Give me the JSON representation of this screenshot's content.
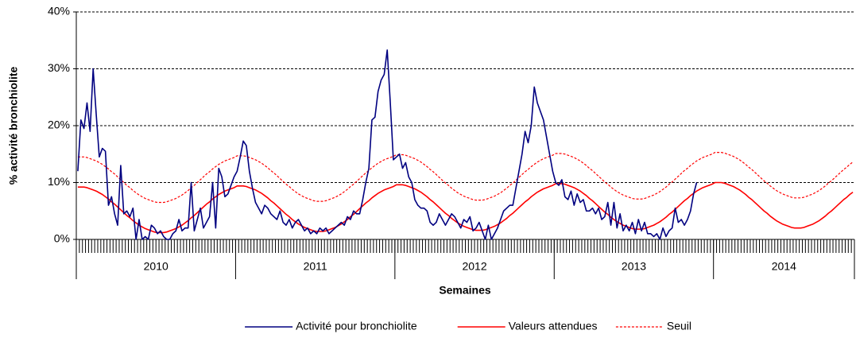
{
  "chart_data": {
    "type": "line",
    "ylabel": "% activité bronchiolite",
    "xlabel": "Semaines",
    "ylim": [
      0,
      40
    ],
    "yticks": [
      {
        "value": 0,
        "label": "0%"
      },
      {
        "value": 10,
        "label": "10%"
      },
      {
        "value": 20,
        "label": "20%"
      },
      {
        "value": 30,
        "label": "30%"
      },
      {
        "value": 40,
        "label": "40%"
      }
    ],
    "grid": true,
    "legend": "bottom",
    "categories": [
      "2010",
      "2010",
      "2010",
      "2010",
      "2010",
      "2010",
      "2010",
      "2010",
      "2010",
      "2010",
      "2010",
      "2010",
      "2010",
      "2010",
      "2010",
      "2010",
      "2010",
      "2010",
      "2010",
      "2010",
      "2010",
      "2010",
      "2010",
      "2010",
      "2010",
      "2010",
      "2010",
      "2010",
      "2010",
      "2010",
      "2010",
      "2010",
      "2010",
      "2010",
      "2010",
      "2010",
      "2010",
      "2010",
      "2010",
      "2010",
      "2010",
      "2010",
      "2010",
      "2010",
      "2010",
      "2010",
      "2010",
      "2010",
      "2010",
      "2010",
      "2010",
      "2010",
      "2011",
      "2011",
      "2011",
      "2011",
      "2011",
      "2011",
      "2011",
      "2011",
      "2011",
      "2011",
      "2011",
      "2011",
      "2011",
      "2011",
      "2011",
      "2011",
      "2011",
      "2011",
      "2011",
      "2011",
      "2011",
      "2011",
      "2011",
      "2011",
      "2011",
      "2011",
      "2011",
      "2011",
      "2011",
      "2011",
      "2011",
      "2011",
      "2011",
      "2011",
      "2011",
      "2011",
      "2011",
      "2011",
      "2011",
      "2011",
      "2011",
      "2011",
      "2011",
      "2011",
      "2011",
      "2011",
      "2011",
      "2011",
      "2011",
      "2011",
      "2011",
      "2011",
      "2012",
      "2012",
      "2012",
      "2012",
      "2012",
      "2012",
      "2012",
      "2012",
      "2012",
      "2012",
      "2012",
      "2012",
      "2012",
      "2012",
      "2012",
      "2012",
      "2012",
      "2012",
      "2012",
      "2012",
      "2012",
      "2012",
      "2012",
      "2012",
      "2012",
      "2012",
      "2012",
      "2012",
      "2012",
      "2012",
      "2012",
      "2012",
      "2012",
      "2012",
      "2012",
      "2012",
      "2012",
      "2012",
      "2012",
      "2012",
      "2012",
      "2012",
      "2012",
      "2012",
      "2012",
      "2012",
      "2012",
      "2012",
      "2012",
      "2012",
      "2012",
      "2012",
      "2013",
      "2013",
      "2013",
      "2013",
      "2013",
      "2013",
      "2013",
      "2013",
      "2013",
      "2013",
      "2013",
      "2013",
      "2013",
      "2013",
      "2013",
      "2013",
      "2013",
      "2013",
      "2013",
      "2013",
      "2013",
      "2013",
      "2013",
      "2013",
      "2013",
      "2013",
      "2013",
      "2013",
      "2013",
      "2013",
      "2013",
      "2013",
      "2013",
      "2013",
      "2013",
      "2013",
      "2013",
      "2013",
      "2013",
      "2013",
      "2013",
      "2013",
      "2013",
      "2013",
      "2013",
      "2013",
      "2013",
      "2013",
      "2013",
      "2013",
      "2013",
      "2013",
      "2014",
      "2014",
      "2014",
      "2014",
      "2014",
      "2014",
      "2014",
      "2014",
      "2014",
      "2014",
      "2014",
      "2014",
      "2014",
      "2014",
      "2014",
      "2014",
      "2014",
      "2014",
      "2014",
      "2014",
      "2014",
      "2014",
      "2014",
      "2014",
      "2014",
      "2014",
      "2014",
      "2014",
      "2014",
      "2014",
      "2014",
      "2014",
      "2014",
      "2014",
      "2014",
      "2014",
      "2014",
      "2014",
      "2014",
      "2014",
      "2014",
      "2014",
      "2014",
      "2014",
      "2014",
      "2014"
    ],
    "series": [
      {
        "name": "Activité pour bronchiolite",
        "color": "#000080",
        "style": "solid",
        "values": [
          12.0,
          21.0,
          19.5,
          24.0,
          19.0,
          30.0,
          22.0,
          14.5,
          16.0,
          15.5,
          6.0,
          7.5,
          4.5,
          2.5,
          13.0,
          4.5,
          5.0,
          4.0,
          5.5,
          0.0,
          3.5,
          0.0,
          0.5,
          0.0,
          2.5,
          2.0,
          1.0,
          1.5,
          0.5,
          0.0,
          0.0,
          1.0,
          1.5,
          3.5,
          1.5,
          2.0,
          2.0,
          10.0,
          1.5,
          3.5,
          5.5,
          2.0,
          3.0,
          4.0,
          10.0,
          2.0,
          12.5,
          11.0,
          7.5,
          8.0,
          9.5,
          11.0,
          12.0,
          14.5,
          17.3,
          16.5,
          12.0,
          9.0,
          6.5,
          5.5,
          4.5,
          6.0,
          5.5,
          4.5,
          4.0,
          3.5,
          5.0,
          3.0,
          2.5,
          3.5,
          2.0,
          3.0,
          3.5,
          2.5,
          1.5,
          2.0,
          1.0,
          1.5,
          1.0,
          2.0,
          1.5,
          2.0,
          1.0,
          1.5,
          2.0,
          2.5,
          3.0,
          2.5,
          4.0,
          3.5,
          5.0,
          4.5,
          4.5,
          7.0,
          10.0,
          12.5,
          21.0,
          21.5,
          26.0,
          28.0,
          29.0,
          33.3,
          24.0,
          14.0,
          14.5,
          15.0,
          12.5,
          13.5,
          11.0,
          10.0,
          7.0,
          6.0,
          5.5,
          5.5,
          5.0,
          3.0,
          2.5,
          3.0,
          4.5,
          3.5,
          2.5,
          3.5,
          4.5,
          4.0,
          3.0,
          2.0,
          3.5,
          3.0,
          4.0,
          1.5,
          2.0,
          3.0,
          1.5,
          0.0,
          2.5,
          0.0,
          1.0,
          2.0,
          3.5,
          5.0,
          5.5,
          6.0,
          6.0,
          9.0,
          12.0,
          15.0,
          19.0,
          17.0,
          20.0,
          26.8,
          24.0,
          22.5,
          21.0,
          18.0,
          15.0,
          12.0,
          10.0,
          9.5,
          10.5,
          7.5,
          7.0,
          8.5,
          6.0,
          8.0,
          6.5,
          7.0,
          5.0,
          5.0,
          5.5,
          4.5,
          5.5,
          3.5,
          4.0,
          6.5,
          2.5,
          6.5,
          2.0,
          4.5,
          1.5,
          2.5,
          1.5,
          3.0,
          1.0,
          3.5,
          1.5,
          3.0,
          1.0,
          1.0,
          0.5,
          1.0,
          0.0,
          2.0,
          0.5,
          1.5,
          2.0,
          5.5,
          3.0,
          3.5,
          2.5,
          3.5,
          5.0,
          8.0,
          10.0,
          null,
          null,
          null,
          null,
          null,
          null,
          null,
          null,
          null,
          null,
          null,
          null,
          null,
          null,
          null,
          null,
          null,
          null,
          null,
          null,
          null,
          null,
          null,
          null,
          null,
          null,
          null,
          null,
          null,
          null,
          null,
          null,
          null,
          null,
          null,
          null,
          null,
          null,
          null,
          null,
          null,
          null,
          null,
          null,
          null,
          null,
          null,
          null,
          null,
          null,
          null
        ]
      },
      {
        "name": "Valeurs attendues",
        "color": "#ff0000",
        "style": "solid",
        "values": [
          9.2,
          9.2,
          9.2,
          9.1,
          8.9,
          8.7,
          8.5,
          8.2,
          7.9,
          7.5,
          7.1,
          6.6,
          6.2,
          5.7,
          5.2,
          4.7,
          4.2,
          3.8,
          3.3,
          2.9,
          2.5,
          2.2,
          1.9,
          1.7,
          1.5,
          1.3,
          1.2,
          1.2,
          1.2,
          1.3,
          1.5,
          1.7,
          1.9,
          2.2,
          2.5,
          2.9,
          3.3,
          3.8,
          4.2,
          4.7,
          5.2,
          5.7,
          6.2,
          6.6,
          7.1,
          7.5,
          7.9,
          8.2,
          8.5,
          8.7,
          8.9,
          9.1,
          9.4,
          9.4,
          9.4,
          9.3,
          9.1,
          8.9,
          8.7,
          8.4,
          8.1,
          7.7,
          7.3,
          6.8,
          6.4,
          5.9,
          5.4,
          4.9,
          4.4,
          4.0,
          3.5,
          3.1,
          2.7,
          2.4,
          2.1,
          1.9,
          1.7,
          1.5,
          1.4,
          1.4,
          1.4,
          1.5,
          1.7,
          1.9,
          2.1,
          2.4,
          2.7,
          3.1,
          3.5,
          4.0,
          4.4,
          4.9,
          5.4,
          5.9,
          6.4,
          6.8,
          7.3,
          7.7,
          8.1,
          8.4,
          8.7,
          8.9,
          9.1,
          9.3,
          9.6,
          9.6,
          9.6,
          9.5,
          9.3,
          9.1,
          8.9,
          8.6,
          8.3,
          7.9,
          7.5,
          7.0,
          6.6,
          6.1,
          5.6,
          5.1,
          4.6,
          4.2,
          3.7,
          3.3,
          2.9,
          2.6,
          2.3,
          2.1,
          1.9,
          1.7,
          1.6,
          1.6,
          1.6,
          1.7,
          1.9,
          2.1,
          2.3,
          2.6,
          2.9,
          3.3,
          3.7,
          4.2,
          4.6,
          5.1,
          5.6,
          6.1,
          6.6,
          7.0,
          7.5,
          7.9,
          8.3,
          8.6,
          8.9,
          9.1,
          9.3,
          9.5,
          9.8,
          9.8,
          9.8,
          9.7,
          9.5,
          9.3,
          9.1,
          8.8,
          8.5,
          8.1,
          7.7,
          7.2,
          6.8,
          6.3,
          5.8,
          5.3,
          4.8,
          4.4,
          3.9,
          3.5,
          3.1,
          2.8,
          2.5,
          2.3,
          2.1,
          1.9,
          1.8,
          1.8,
          1.8,
          1.9,
          2.1,
          2.3,
          2.5,
          2.8,
          3.1,
          3.5,
          3.9,
          4.4,
          4.8,
          5.3,
          5.8,
          6.3,
          6.8,
          7.2,
          7.7,
          8.1,
          8.5,
          8.8,
          9.1,
          9.3,
          9.5,
          9.7,
          10.0,
          10.0,
          10.0,
          9.9,
          9.7,
          9.5,
          9.3,
          9.0,
          8.7,
          8.3,
          7.9,
          7.4,
          7.0,
          6.5,
          6.0,
          5.5,
          5.0,
          4.6,
          4.1,
          3.7,
          3.3,
          3.0,
          2.7,
          2.5,
          2.3,
          2.1,
          2.0,
          2.0,
          2.0,
          2.1,
          2.3,
          2.5,
          2.7,
          3.0,
          3.3,
          3.7,
          4.1,
          4.6,
          5.0,
          5.5,
          6.0,
          6.5,
          7.0,
          7.4,
          7.9,
          8.3
        ]
      },
      {
        "name": "Seuil",
        "color": "#ff0000",
        "style": "dashed",
        "values": [
          14.5,
          14.5,
          14.5,
          14.4,
          14.2,
          14.0,
          13.8,
          13.5,
          13.2,
          12.8,
          12.4,
          11.9,
          11.5,
          11.0,
          10.5,
          10.0,
          9.5,
          9.1,
          8.6,
          8.2,
          7.8,
          7.5,
          7.2,
          7.0,
          6.8,
          6.6,
          6.5,
          6.5,
          6.5,
          6.6,
          6.8,
          7.0,
          7.2,
          7.5,
          7.8,
          8.2,
          8.6,
          9.1,
          9.5,
          10.0,
          10.5,
          11.0,
          11.5,
          11.9,
          12.4,
          12.8,
          13.2,
          13.5,
          13.8,
          14.0,
          14.2,
          14.4,
          14.7,
          14.7,
          14.7,
          14.6,
          14.4,
          14.2,
          14.0,
          13.7,
          13.4,
          13.0,
          12.6,
          12.1,
          11.7,
          11.2,
          10.7,
          10.2,
          9.7,
          9.3,
          8.8,
          8.4,
          8.0,
          7.7,
          7.4,
          7.2,
          7.0,
          6.8,
          6.7,
          6.7,
          6.7,
          6.8,
          7.0,
          7.2,
          7.4,
          7.7,
          8.0,
          8.4,
          8.8,
          9.3,
          9.7,
          10.2,
          10.7,
          11.2,
          11.7,
          12.1,
          12.6,
          13.0,
          13.4,
          13.7,
          14.0,
          14.2,
          14.4,
          14.6,
          14.9,
          14.9,
          14.9,
          14.8,
          14.6,
          14.4,
          14.2,
          13.9,
          13.6,
          13.2,
          12.8,
          12.3,
          11.9,
          11.4,
          10.9,
          10.4,
          9.9,
          9.5,
          9.0,
          8.6,
          8.2,
          7.9,
          7.6,
          7.4,
          7.2,
          7.0,
          6.9,
          6.9,
          6.9,
          7.0,
          7.2,
          7.4,
          7.6,
          7.9,
          8.2,
          8.6,
          9.0,
          9.5,
          9.9,
          10.4,
          10.9,
          11.4,
          11.9,
          12.3,
          12.8,
          13.2,
          13.6,
          13.9,
          14.2,
          14.4,
          14.6,
          14.8,
          15.1,
          15.1,
          15.1,
          15.0,
          14.8,
          14.6,
          14.4,
          14.1,
          13.8,
          13.4,
          13.0,
          12.5,
          12.1,
          11.6,
          11.1,
          10.6,
          10.1,
          9.7,
          9.2,
          8.8,
          8.4,
          8.1,
          7.8,
          7.6,
          7.4,
          7.2,
          7.1,
          7.1,
          7.1,
          7.2,
          7.4,
          7.6,
          7.8,
          8.1,
          8.4,
          8.8,
          9.2,
          9.7,
          10.1,
          10.6,
          11.1,
          11.6,
          12.1,
          12.5,
          13.0,
          13.4,
          13.8,
          14.1,
          14.4,
          14.6,
          14.8,
          15.0,
          15.3,
          15.3,
          15.3,
          15.2,
          15.0,
          14.8,
          14.6,
          14.3,
          14.0,
          13.6,
          13.2,
          12.7,
          12.3,
          11.8,
          11.3,
          10.8,
          10.3,
          9.9,
          9.4,
          9.0,
          8.6,
          8.3,
          8.0,
          7.8,
          7.6,
          7.4,
          7.3,
          7.3,
          7.3,
          7.4,
          7.6,
          7.8,
          8.0,
          8.3,
          8.6,
          9.0,
          9.4,
          9.9,
          10.3,
          10.8,
          11.3,
          11.8,
          12.3,
          12.7,
          13.2,
          13.6
        ]
      }
    ]
  }
}
